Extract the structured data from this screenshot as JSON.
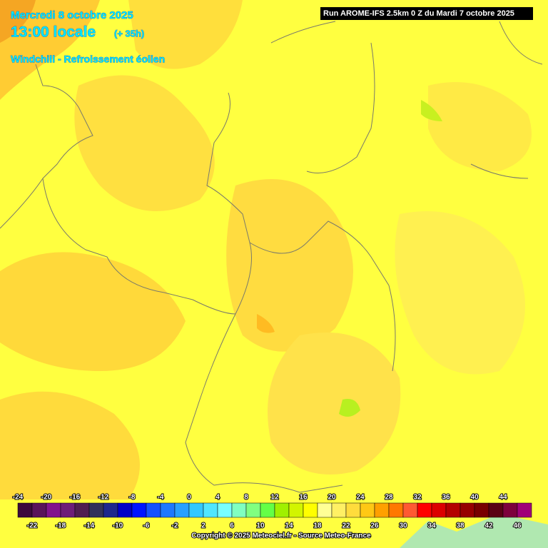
{
  "header": {
    "date": "Mercredi 8 octobre 2025",
    "time": "13:00 locale",
    "lead": "(+ 35h)",
    "parameter": "Windchill - Refroissement éolien"
  },
  "run": "Run AROME-IFS 2.5km 0 Z du Mardi 7 octobre 2025",
  "legend": {
    "upper_labels": [
      -24,
      -20,
      -16,
      -12,
      -8,
      -4,
      0,
      4,
      8,
      12,
      16,
      20,
      24,
      28,
      32,
      36,
      40,
      44
    ],
    "lower_labels": [
      -22,
      -18,
      -14,
      -10,
      -6,
      -2,
      2,
      6,
      10,
      14,
      18,
      22,
      26,
      30,
      34,
      38,
      42,
      46
    ],
    "colors": [
      "#3c0a3c",
      "#5a145a",
      "#82148c",
      "#6e1e78",
      "#501e50",
      "#32325a",
      "#1e288c",
      "#0000c8",
      "#0014ff",
      "#1450ff",
      "#1e78ff",
      "#28a0ff",
      "#32c8ff",
      "#50e6ff",
      "#78ffff",
      "#80ffc0",
      "#80ff80",
      "#64ff46",
      "#a0f000",
      "#d2f500",
      "#ffff00",
      "#ffff96",
      "#fff064",
      "#ffdc3c",
      "#ffc814",
      "#ffa000",
      "#ff7800",
      "#ff5a32",
      "#ff0000",
      "#dc0000",
      "#b40000",
      "#960000",
      "#780000",
      "#5a0014",
      "#7d003c",
      "#a00078",
      "#c800c8",
      "#ff00ff",
      "#ff64ff"
    ]
  },
  "copyright": "Copyright © 2025 Meteociel.fr - Source Meteo-France"
}
